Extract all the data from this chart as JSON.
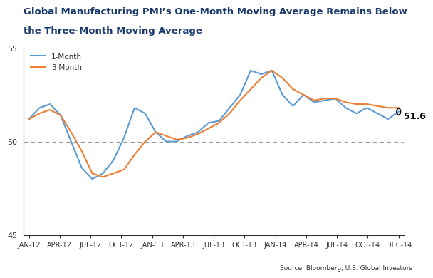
{
  "title_line1": "Global Manufacturing PMI’s One-Month Moving Average Remains Below",
  "title_line2": "the Three-Month Moving Average",
  "title_color": "#1a3a6b",
  "source_text": "Source: Bloomberg, U.S. Global Investors",
  "ylim": [
    45,
    55
  ],
  "x_labels": [
    "JAN-12",
    "APR-12",
    "JUL-12",
    "OCT-12",
    "JAN-13",
    "APR-13",
    "JUL-13",
    "OCT-13",
    "JAN-14",
    "APR-14",
    "JUL-14",
    "OCT-14",
    "DEC-14"
  ],
  "one_month_color": "#5b9bd5",
  "three_month_color": "#ed7d31",
  "annotation_value": "51.6",
  "annotation_fontsize": 9,
  "one_month_data": [
    51.2,
    51.8,
    52.0,
    51.4,
    50.0,
    48.6,
    48.0,
    48.3,
    49.0,
    50.2,
    51.8,
    51.5,
    50.5,
    50.0,
    50.0,
    50.3,
    50.5,
    51.0,
    51.1,
    51.8,
    52.5,
    53.8,
    53.6,
    53.8,
    52.5,
    51.9,
    52.5,
    52.1,
    52.2,
    52.3,
    51.8,
    51.5,
    51.8,
    51.5,
    51.2,
    51.6
  ],
  "three_month_data": [
    51.2,
    51.5,
    51.7,
    51.4,
    50.5,
    49.5,
    48.3,
    48.1,
    48.3,
    48.5,
    49.3,
    50.0,
    50.5,
    50.3,
    50.1,
    50.2,
    50.4,
    50.7,
    51.0,
    51.5,
    52.2,
    52.8,
    53.4,
    53.8,
    53.4,
    52.8,
    52.5,
    52.2,
    52.3,
    52.3,
    52.1,
    52.0,
    52.0,
    51.9,
    51.8,
    51.8
  ],
  "n_points": 36,
  "background_color": "#ffffff",
  "legend_1month": "1-Month",
  "legend_3month": "3-Month"
}
